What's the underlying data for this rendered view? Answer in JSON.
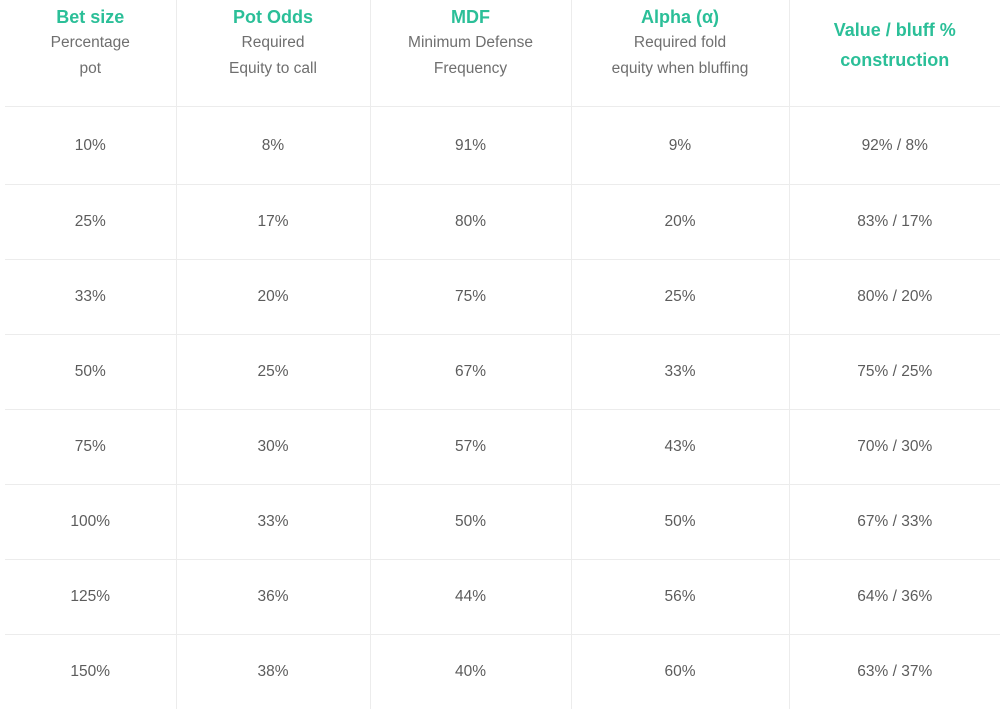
{
  "headers": [
    {
      "title": "Bet size",
      "sub": [
        "Percentage",
        "pot"
      ]
    },
    {
      "title": "Pot Odds",
      "sub": [
        "Required",
        "Equity to call"
      ]
    },
    {
      "title": "MDF",
      "sub": [
        "Minimum Defense",
        "Frequency"
      ]
    },
    {
      "title": "Alpha (α)",
      "sub": [
        "Required fold",
        "equity when bluffing"
      ]
    },
    {
      "title_lines": [
        "Value / bluff %",
        "construction"
      ]
    }
  ],
  "rows": [
    [
      "10%",
      "8%",
      "91%",
      "9%",
      "92% / 8%"
    ],
    [
      "25%",
      "17%",
      "80%",
      "20%",
      "83% / 17%"
    ],
    [
      "33%",
      "20%",
      "75%",
      "25%",
      "80% / 20%"
    ],
    [
      "50%",
      "25%",
      "67%",
      "33%",
      "75% / 25%"
    ],
    [
      "75%",
      "30%",
      "57%",
      "43%",
      "70% / 30%"
    ],
    [
      "100%",
      "33%",
      "50%",
      "50%",
      "67% / 33%"
    ],
    [
      "125%",
      "36%",
      "44%",
      "56%",
      "64% / 36%"
    ],
    [
      "150%",
      "38%",
      "40%",
      "60%",
      "63% / 37%"
    ]
  ],
  "colors": {
    "header_accent": "#2bbf98",
    "text": "#5c5c5c",
    "grid": "#ececec"
  }
}
